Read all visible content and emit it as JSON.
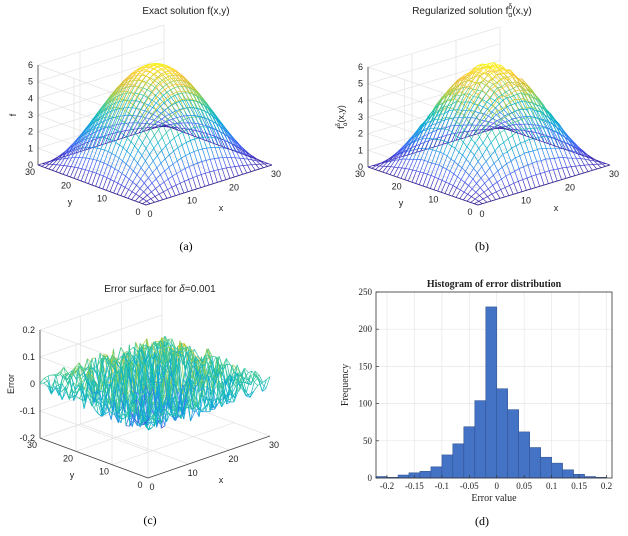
{
  "chart_data": [
    {
      "type": "surface",
      "panel_label": "(a)",
      "title": "Exact solution f(x,y)",
      "xlabel": "x",
      "ylabel": "y",
      "zlabel": "f",
      "x_ticks": [
        "0",
        "10",
        "20",
        "30"
      ],
      "y_ticks": [
        "0",
        "10",
        "20",
        "30"
      ],
      "z_ticks": [
        "0",
        "1",
        "2",
        "3",
        "4",
        "5",
        "6"
      ],
      "xlim": [
        0,
        30
      ],
      "ylim": [
        0,
        30
      ],
      "zlim": [
        0,
        6
      ],
      "grid": true,
      "colormap": "parula",
      "peak": 6,
      "noise": 0,
      "surface": "f(x,y) = 6·sin(πx/30)·sin(πy/30)"
    },
    {
      "type": "surface",
      "panel_label": "(b)",
      "title_main": "Regularized solution f",
      "title_sup": "δ",
      "title_sub": "α",
      "title_tail": "(x,y)",
      "xlabel": "x",
      "ylabel": "y",
      "zlabel_main": "f",
      "zlabel_sup": "δ",
      "zlabel_sub": "α",
      "zlabel_tail": "(x,y)",
      "x_ticks": [
        "0",
        "10",
        "20",
        "30"
      ],
      "y_ticks": [
        "0",
        "10",
        "20",
        "30"
      ],
      "z_ticks": [
        "0",
        "1",
        "2",
        "3",
        "4",
        "5",
        "6"
      ],
      "xlim": [
        0,
        30
      ],
      "ylim": [
        0,
        30
      ],
      "zlim": [
        0,
        6
      ],
      "grid": true,
      "colormap": "parula",
      "peak": 6,
      "noise": 0.15
    },
    {
      "type": "surface",
      "panel_label": "(c)",
      "title_main": "Error surface for ",
      "title_delta": "δ",
      "title_tail": "=0.001",
      "xlabel": "x",
      "ylabel": "y",
      "zlabel": "Error",
      "x_ticks": [
        "0",
        "10",
        "20",
        "30"
      ],
      "y_ticks": [
        "0",
        "10",
        "20",
        "30"
      ],
      "z_ticks": [
        "-0.2",
        "-0.1",
        "0",
        "0.1",
        "0.2"
      ],
      "xlim": [
        0,
        30
      ],
      "ylim": [
        0,
        30
      ],
      "zlim": [
        -0.2,
        0.2
      ],
      "grid": true,
      "colormap": "parula",
      "error_amplitude": 0.15
    },
    {
      "type": "bar",
      "panel_label": "(d)",
      "title": "Histogram of error distribution",
      "xlabel": "Error value",
      "ylabel": "Frequency",
      "x_ticks": [
        "-0.2",
        "-0.15",
        "-0.1",
        "-0.05",
        "0",
        "0.05",
        "0.1",
        "0.15",
        "0.2"
      ],
      "y_ticks": [
        "0",
        "50",
        "100",
        "150",
        "200",
        "250"
      ],
      "xlim": [
        -0.22,
        0.21
      ],
      "ylim": [
        0,
        250
      ],
      "bin_width": 0.02,
      "bin_centers": [
        -0.21,
        -0.19,
        -0.17,
        -0.15,
        -0.13,
        -0.11,
        -0.09,
        -0.07,
        -0.05,
        -0.03,
        -0.01,
        0.01,
        0.03,
        0.05,
        0.07,
        0.09,
        0.11,
        0.13,
        0.15,
        0.17,
        0.19
      ],
      "values": [
        2,
        1,
        4,
        7,
        9,
        15,
        31,
        46,
        69,
        104,
        230,
        120,
        92,
        62,
        41,
        28,
        20,
        11,
        5,
        2,
        1
      ],
      "bar_color": "#4472C4",
      "grid": true
    }
  ]
}
